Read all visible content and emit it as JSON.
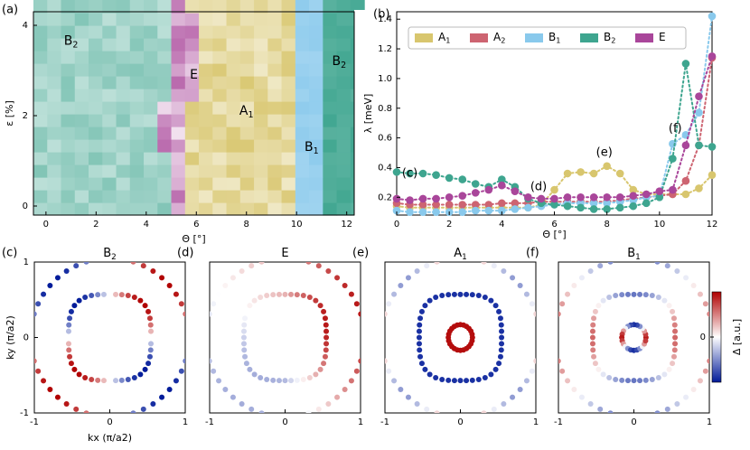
{
  "colors": {
    "A1": "#d8c66e",
    "A2": "#cd6471",
    "B1": "#89c9ec",
    "B2": "#3ea58f",
    "E": "#a9469a",
    "cmap_neg": "#001a99",
    "cmap_mid": "#ffffff",
    "cmap_pos": "#b00000"
  },
  "chart_data": [
    {
      "panel": "(a)",
      "type": "heatmap",
      "xlabel": "Θ [°]",
      "ylabel": "ε [%]",
      "xlim": [
        -0.5,
        12.3
      ],
      "ylim": [
        -0.2,
        4.3
      ],
      "xticks": [
        "0",
        "2",
        "4",
        "6",
        "8",
        "10",
        "12"
      ],
      "yticks": [
        "0",
        "2",
        "4"
      ],
      "regions": [
        {
          "label": "B2",
          "label_text": "B",
          "label_sub": "2",
          "at": [
            1.0,
            3.65
          ]
        },
        {
          "label": "E",
          "label_text": "E",
          "label_sub": "",
          "at": [
            5.9,
            2.9
          ]
        },
        {
          "label": "A1",
          "label_text": "A",
          "label_sub": "1",
          "at": [
            8.0,
            2.1
          ]
        },
        {
          "label": "B1",
          "label_text": "B",
          "label_sub": "1",
          "at": [
            10.6,
            1.3
          ]
        },
        {
          "label": "B2",
          "label_text": "B",
          "label_sub": "2",
          "at": [
            11.7,
            3.2
          ]
        }
      ],
      "boundaries": {
        "B2_E": [
          [
            4.9,
            4.3
          ],
          [
            5.1,
            3.8
          ],
          [
            5.0,
            3.3
          ],
          [
            4.8,
            2.6
          ],
          [
            4.7,
            2.1
          ],
          [
            4.6,
            1.7
          ],
          [
            4.7,
            1.4
          ],
          [
            4.8,
            1.0
          ],
          [
            4.9,
            0.4
          ],
          [
            5.0,
            -0.2
          ]
        ],
        "E_A1": [
          [
            6.0,
            4.3
          ],
          [
            6.2,
            3.8
          ],
          [
            6.2,
            3.4
          ],
          [
            6.0,
            2.9
          ],
          [
            5.9,
            2.5
          ],
          [
            5.8,
            2.1
          ],
          [
            5.7,
            1.6
          ],
          [
            5.6,
            1.3
          ],
          [
            5.6,
            -0.2
          ]
        ],
        "A1_B1": [
          [
            9.8,
            4.3
          ],
          [
            9.8,
            3.0
          ],
          [
            9.8,
            2.0
          ],
          [
            9.8,
            1.0
          ],
          [
            9.8,
            0.3
          ],
          [
            9.7,
            -0.2
          ]
        ],
        "B1_B2": [
          [
            11.0,
            4.3
          ],
          [
            11.0,
            3.3
          ],
          [
            11.0,
            2.3
          ],
          [
            10.9,
            1.6
          ],
          [
            10.9,
            0.5
          ],
          [
            11.0,
            0.3
          ],
          [
            11.0,
            -0.2
          ]
        ]
      }
    },
    {
      "panel": "(b)",
      "type": "line",
      "xlabel": "Θ [°]",
      "ylabel": "λ [meV]",
      "xlim": [
        0,
        12
      ],
      "ylim": [
        0.08,
        1.45
      ],
      "xticks": [
        "0",
        "2",
        "4",
        "6",
        "8",
        "10",
        "12"
      ],
      "yticks": [
        "0.2",
        "0.4",
        "0.6",
        "0.8",
        "1.0",
        "1.2",
        "1.4"
      ],
      "legend": "top",
      "x": [
        0,
        0.5,
        1,
        1.5,
        2,
        2.5,
        3,
        3.5,
        4,
        4.5,
        5,
        5.5,
        6,
        6.5,
        7,
        7.5,
        8,
        8.5,
        9,
        9.5,
        10,
        10.5,
        11,
        11.5,
        12
      ],
      "series": [
        {
          "name": "A1",
          "label_main": "A",
          "label_sub": "1",
          "values": [
            0.14,
            0.13,
            0.13,
            0.13,
            0.13,
            0.13,
            0.13,
            0.13,
            0.13,
            0.13,
            0.13,
            0.15,
            0.25,
            0.36,
            0.37,
            0.36,
            0.41,
            0.36,
            0.25,
            0.22,
            0.22,
            0.22,
            0.22,
            0.26,
            0.35
          ]
        },
        {
          "name": "A2",
          "label_main": "A",
          "label_sub": "2",
          "values": [
            0.16,
            0.15,
            0.15,
            0.15,
            0.15,
            0.15,
            0.15,
            0.15,
            0.16,
            0.16,
            0.16,
            0.17,
            0.17,
            0.17,
            0.17,
            0.17,
            0.17,
            0.18,
            0.19,
            0.2,
            0.21,
            0.22,
            0.31,
            0.55,
            1.14
          ]
        },
        {
          "name": "B1",
          "label_main": "B",
          "label_sub": "1",
          "values": [
            0.11,
            0.1,
            0.1,
            0.1,
            0.1,
            0.1,
            0.11,
            0.11,
            0.11,
            0.12,
            0.13,
            0.14,
            0.15,
            0.16,
            0.16,
            0.16,
            0.16,
            0.17,
            0.18,
            0.2,
            0.21,
            0.56,
            0.62,
            0.77,
            1.42
          ]
        },
        {
          "name": "B2",
          "label_main": "B",
          "label_sub": "2",
          "values": [
            0.37,
            0.36,
            0.36,
            0.35,
            0.33,
            0.32,
            0.29,
            0.27,
            0.32,
            0.27,
            0.19,
            0.16,
            0.15,
            0.14,
            0.13,
            0.12,
            0.12,
            0.13,
            0.14,
            0.16,
            0.2,
            0.46,
            1.1,
            0.55,
            0.54
          ]
        },
        {
          "name": "E",
          "label_main": "E",
          "label_sub": "",
          "values": [
            0.19,
            0.18,
            0.19,
            0.19,
            0.2,
            0.21,
            0.23,
            0.25,
            0.28,
            0.24,
            0.2,
            0.19,
            0.19,
            0.2,
            0.2,
            0.2,
            0.2,
            0.2,
            0.21,
            0.22,
            0.24,
            0.25,
            0.55,
            0.88,
            1.15
          ]
        }
      ],
      "annotations": [
        {
          "text": "(c)",
          "at": [
            0.5,
            0.36
          ]
        },
        {
          "text": "(d)",
          "at": [
            5.4,
            0.27
          ]
        },
        {
          "text": "(e)",
          "at": [
            7.9,
            0.5
          ]
        },
        {
          "text": "(f)",
          "at": [
            10.6,
            0.66
          ]
        }
      ]
    },
    {
      "panel": "(c)",
      "type": "scatter",
      "title": "B2",
      "title_main": "B",
      "title_sub": "2",
      "xlabel": "kx (π/a2)",
      "ylabel": "ky (π/a2)",
      "xlim": [
        -1,
        1
      ],
      "ylim": [
        -1,
        1
      ],
      "xticks": [
        "-1",
        "0",
        "1"
      ],
      "yticks": [
        "-1",
        "0",
        "1"
      ],
      "pattern": "B2",
      "colorbar": false
    },
    {
      "panel": "(d)",
      "type": "scatter",
      "title": "E",
      "title_main": "E",
      "title_sub": "",
      "xlim": [
        -1,
        1
      ],
      "ylim": [
        -1,
        1
      ],
      "xticks": [
        "-1",
        "0",
        "1"
      ],
      "pattern": "E",
      "colorbar": false
    },
    {
      "panel": "(e)",
      "type": "scatter",
      "title": "A1",
      "title_main": "A",
      "title_sub": "1",
      "xlim": [
        -1,
        1
      ],
      "ylim": [
        -1,
        1
      ],
      "xticks": [
        "-1",
        "0",
        "1"
      ],
      "pattern": "A1",
      "colorbar": false
    },
    {
      "panel": "(f)",
      "type": "scatter",
      "title": "B1",
      "title_main": "B",
      "title_sub": "1",
      "xlim": [
        -1,
        1
      ],
      "ylim": [
        -1,
        1
      ],
      "xticks": [
        "-1",
        "0",
        "1"
      ],
      "pattern": "B1",
      "colorbar": true,
      "colorbar_label": "Δ [a.u.]",
      "colorbar_tick": "0"
    }
  ]
}
